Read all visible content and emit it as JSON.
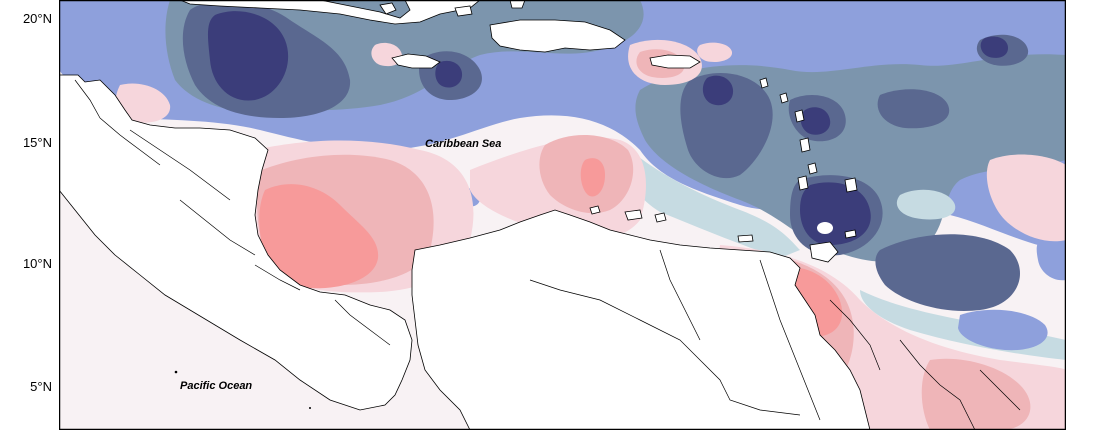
{
  "map": {
    "lat_ticks": [
      {
        "label": "20°N"
      },
      {
        "label": "15°N"
      },
      {
        "label": "10°N"
      },
      {
        "label": "5°N"
      }
    ],
    "water_labels": {
      "caribbean": "Caribbean Sea",
      "pacific": "Pacific Ocean"
    },
    "palette": {
      "deep_blue": "#3b3d7a",
      "slate_blue": "#5a6890",
      "steel_blue": "#7c95ad",
      "periwinkle": "#8ea0dc",
      "pale_blue": "#c6dbe2",
      "near_white": "#f8f2f4",
      "pale_pink": "#f6d6dc",
      "light_red": "#efb5b8",
      "salmon": "#f79a9a",
      "land": "#ffffff",
      "border": "#000000"
    }
  }
}
